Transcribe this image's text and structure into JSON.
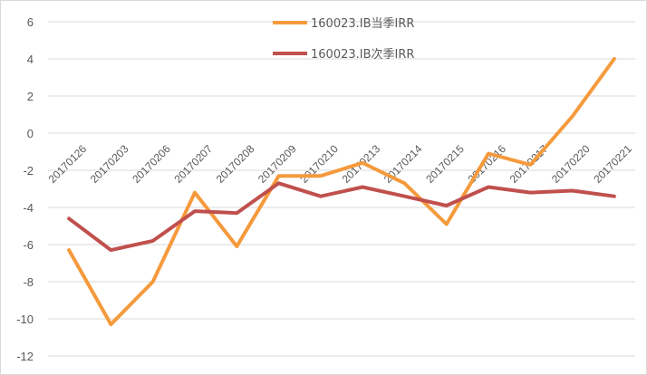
{
  "chart_data": {
    "type": "line",
    "categories": [
      "20170126",
      "20170203",
      "20170206",
      "20170207",
      "20170208",
      "20170209",
      "20170210",
      "20170213",
      "20170214",
      "20170215",
      "20170216",
      "20170217",
      "20170220",
      "20170221"
    ],
    "series": [
      {
        "name": "160023.IB当季IRR",
        "color": "#f59a3c",
        "values": [
          -6.3,
          -10.3,
          -8.0,
          -3.2,
          -6.1,
          -2.3,
          -2.3,
          -1.6,
          -2.7,
          -4.9,
          -1.1,
          -1.7,
          0.9,
          4.0
        ]
      },
      {
        "name": "160023.IB次季IRR",
        "color": "#c0504d",
        "values": [
          -4.6,
          -6.3,
          -5.8,
          -4.2,
          -4.3,
          -2.7,
          -3.4,
          -2.9,
          -3.4,
          -3.9,
          -2.9,
          -3.2,
          -3.1,
          -3.4
        ]
      }
    ],
    "y_ticks": [
      "6",
      "4",
      "2",
      "0",
      "-2",
      "-4",
      "-6",
      "-8",
      "-10",
      "-12"
    ],
    "ylim": [
      -12,
      6
    ],
    "grid": "horizontal",
    "legend_position": "top-right"
  }
}
